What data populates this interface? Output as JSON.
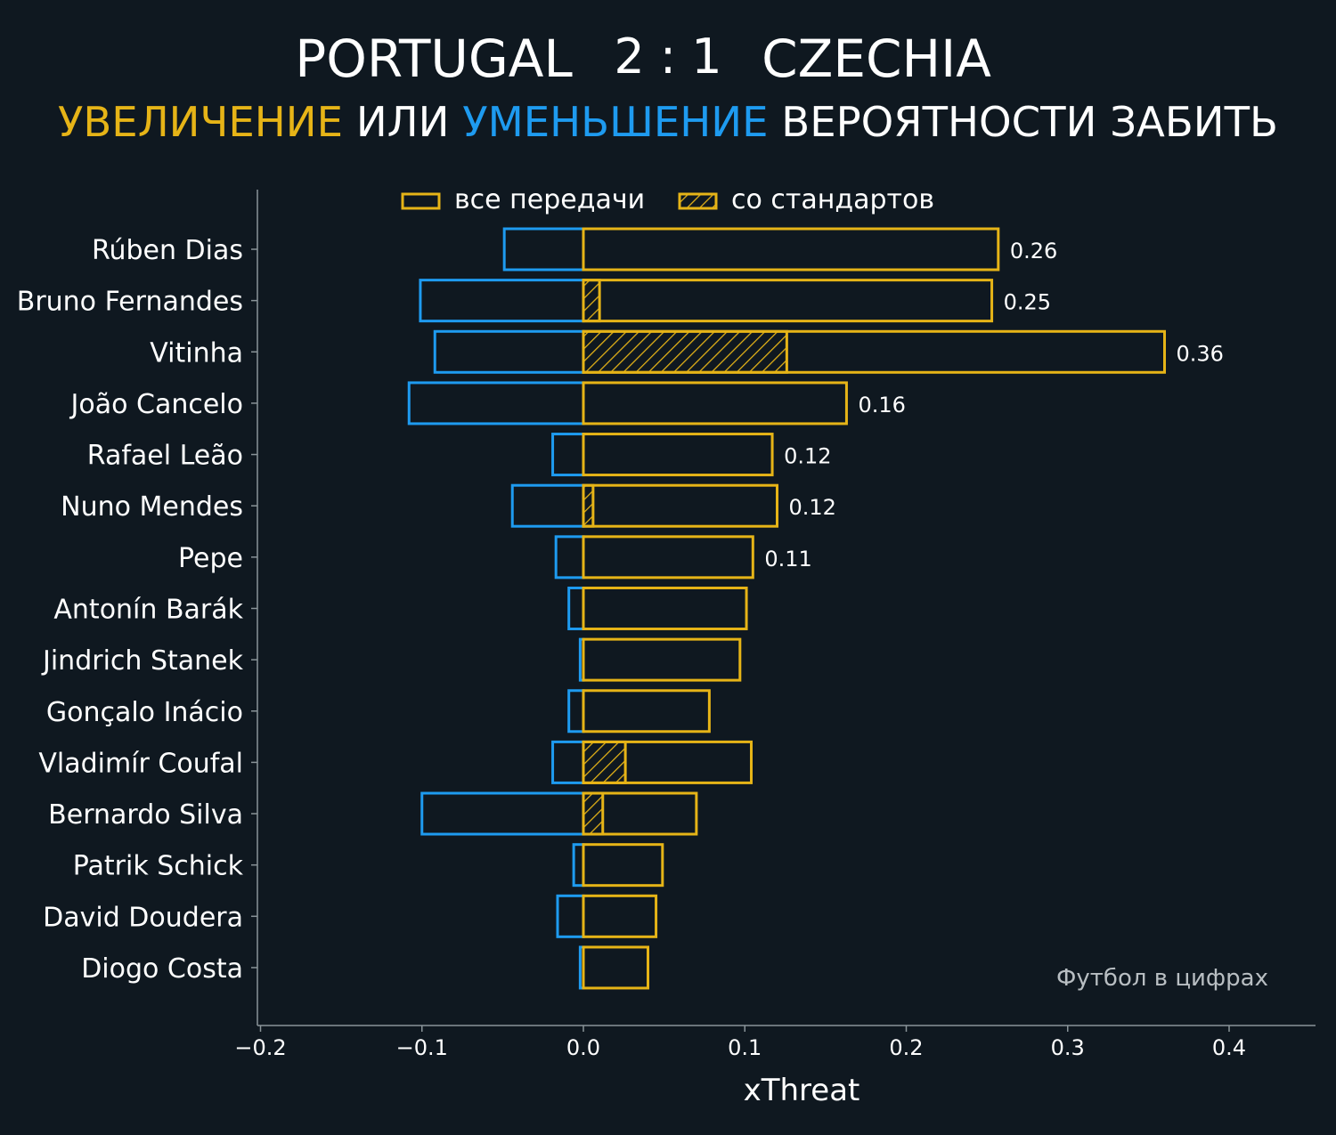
{
  "chart_data": {
    "type": "bar",
    "title": {
      "home": "PORTUGAL",
      "score": "2 : 1",
      "away": "CZECHIA"
    },
    "subtitle": {
      "part1": "УВЕЛИЧЕНИЕ",
      "part2": "ИЛИ",
      "part3": "УМЕНЬШЕНИЕ",
      "part4": "ВЕРОЯТНОСТИ ЗАБИТЬ"
    },
    "xlabel": "xThreat",
    "xlim": [
      -0.2,
      0.45
    ],
    "xticks": [
      -0.2,
      -0.1,
      0.0,
      0.1,
      0.2,
      0.3,
      0.4
    ],
    "xtick_labels": [
      "−0.2",
      "−0.1",
      "0.0",
      "0.1",
      "0.2",
      "0.3",
      "0.4"
    ],
    "legend": {
      "position": "top-center",
      "entries": [
        "все передачи",
        "со стандартов"
      ]
    },
    "watermark": "Футбол в цифрах",
    "colors": {
      "background": "#0f1820",
      "positive": "#e6b417",
      "negative": "#1e9bf0",
      "axis": "#8a9499"
    },
    "categories": [
      "Rúben Dias",
      "Bruno Fernandes",
      "Vitinha",
      "João Cancelo",
      "Rafael Leão",
      "Nuno Mendes",
      "Pepe",
      "Antonín Barák",
      "Jindrich Stanek",
      "Gonçalo Inácio",
      "Vladimír Coufal",
      "Bernardo Silva",
      "Patrik Schick",
      "David Doudera",
      "Diogo Costa"
    ],
    "series": [
      {
        "name": "negative",
        "values": [
          -0.049,
          -0.101,
          -0.092,
          -0.108,
          -0.019,
          -0.044,
          -0.017,
          -0.009,
          -0.002,
          -0.009,
          -0.019,
          -0.1,
          -0.006,
          -0.016,
          -0.002
        ]
      },
      {
        "name": "все передачи",
        "values": [
          0.257,
          0.253,
          0.36,
          0.163,
          0.117,
          0.12,
          0.105,
          0.101,
          0.097,
          0.078,
          0.104,
          0.07,
          0.049,
          0.045,
          0.04
        ]
      },
      {
        "name": "со стандартов",
        "values": [
          0,
          0.01,
          0.126,
          0,
          0,
          0.006,
          0,
          0,
          0,
          0,
          0.026,
          0.012,
          0,
          0,
          0
        ]
      }
    ],
    "data_labels": [
      "0.26",
      "0.25",
      "0.36",
      "0.16",
      "0.12",
      "0.12",
      "0.11",
      "",
      "",
      "",
      "",
      "",
      "",
      "",
      ""
    ]
  }
}
